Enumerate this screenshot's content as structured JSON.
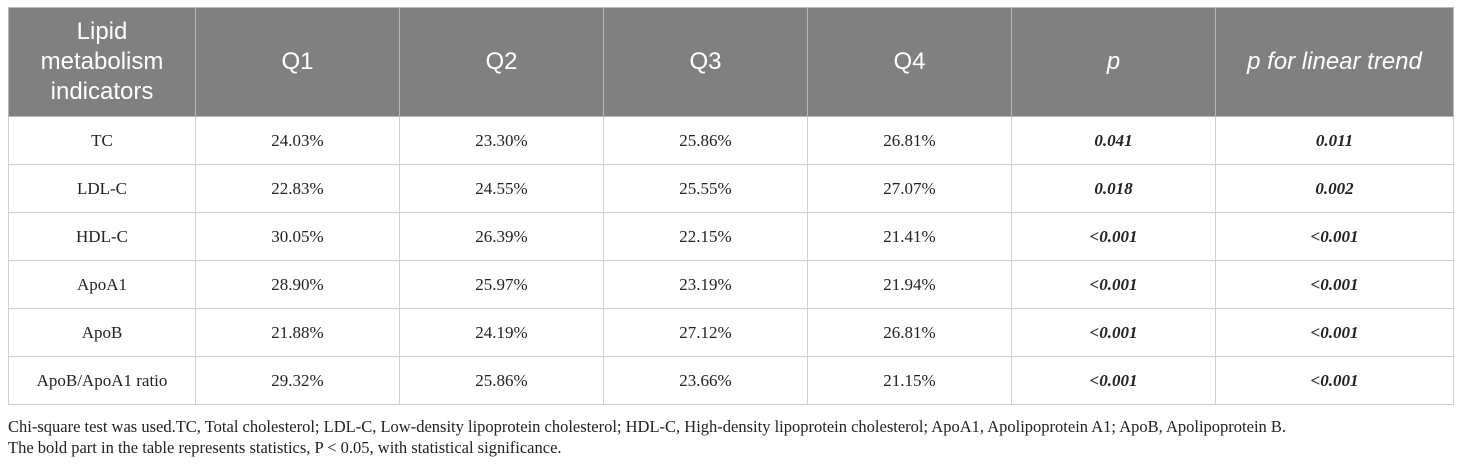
{
  "table": {
    "headers": [
      "Lipid metabolism indicators",
      "Q1",
      "Q2",
      "Q3",
      "Q4",
      "p",
      "p for linear trend"
    ],
    "rows": [
      [
        "TC",
        "24.03%",
        "23.30%",
        "25.86%",
        "26.81%",
        "0.041",
        "0.011"
      ],
      [
        "LDL-C",
        "22.83%",
        "24.55%",
        "25.55%",
        "27.07%",
        "0.018",
        "0.002"
      ],
      [
        "HDL-C",
        "30.05%",
        "26.39%",
        "22.15%",
        "21.41%",
        "<0.001",
        "<0.001"
      ],
      [
        "ApoA1",
        "28.90%",
        "25.97%",
        "23.19%",
        "21.94%",
        "<0.001",
        "<0.001"
      ],
      [
        "ApoB",
        "21.88%",
        "24.19%",
        "27.12%",
        "26.81%",
        "<0.001",
        "<0.001"
      ],
      [
        "ApoB/ApoA1 ratio",
        "29.32%",
        "25.86%",
        "23.66%",
        "21.15%",
        "<0.001",
        "<0.001"
      ]
    ]
  },
  "footnote": {
    "line1": "Chi-square test was used.TC, Total cholesterol; LDL-C, Low-density lipoprotein cholesterol; HDL-C, High-density lipoprotein cholesterol; ApoA1, Apolipoprotein A1; ApoB, Apolipoprotein B.",
    "line2": "The bold part in the table represents statistics, P < 0.05, with statistical significance."
  },
  "colors": {
    "header_bg": "#808080",
    "header_text": "#ffffff",
    "grid": "#cfcfcf"
  }
}
